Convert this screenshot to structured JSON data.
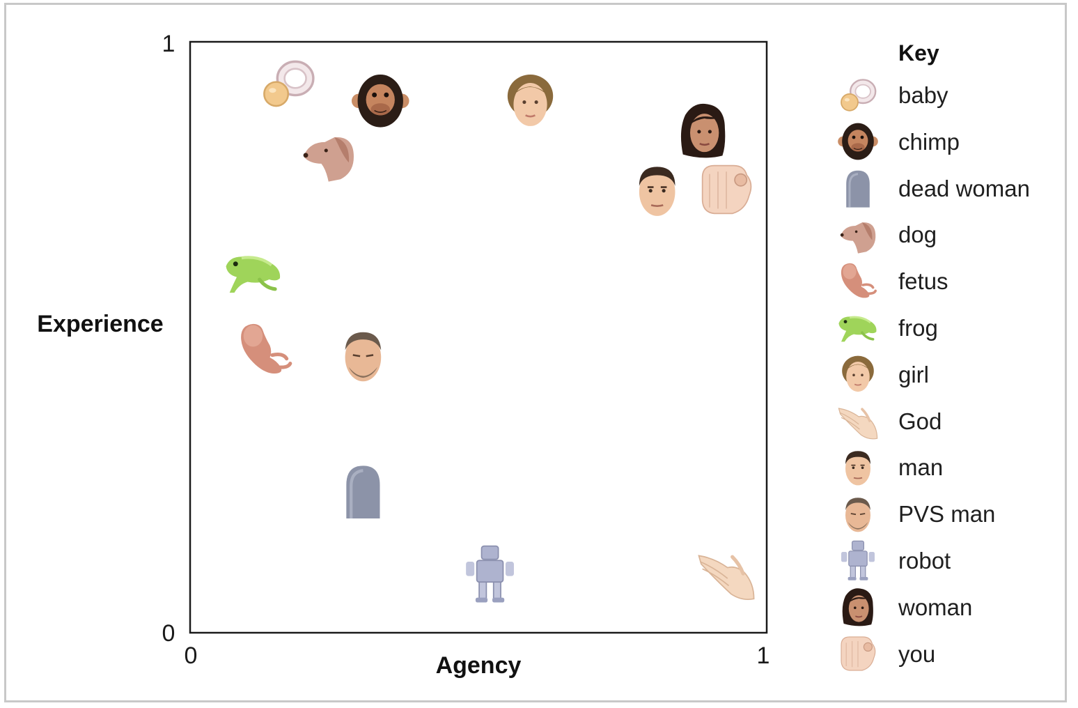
{
  "chart_data": {
    "type": "scatter",
    "title": "",
    "xlabel": "Agency",
    "ylabel": "Experience",
    "xlim": [
      0,
      1
    ],
    "ylim": [
      0,
      1
    ],
    "x_ticks": [
      "0",
      "1"
    ],
    "y_ticks": [
      "0",
      "1"
    ],
    "legend_title": "Key",
    "points": [
      {
        "name": "baby",
        "icon": "pacifier-icon",
        "x": 0.17,
        "y": 0.93
      },
      {
        "name": "chimp",
        "icon": "chimp-icon",
        "x": 0.33,
        "y": 0.9
      },
      {
        "name": "dead woman",
        "icon": "tombstone-icon",
        "x": 0.3,
        "y": 0.24
      },
      {
        "name": "dog",
        "icon": "dog-icon",
        "x": 0.24,
        "y": 0.81
      },
      {
        "name": "fetus",
        "icon": "fetus-icon",
        "x": 0.13,
        "y": 0.48
      },
      {
        "name": "frog",
        "icon": "frog-icon",
        "x": 0.11,
        "y": 0.61
      },
      {
        "name": "girl",
        "icon": "girl-icon",
        "x": 0.59,
        "y": 0.9
      },
      {
        "name": "God",
        "icon": "hands-icon",
        "x": 0.93,
        "y": 0.1
      },
      {
        "name": "man",
        "icon": "man-icon",
        "x": 0.81,
        "y": 0.75
      },
      {
        "name": "PVS man",
        "icon": "pvs-man-icon",
        "x": 0.3,
        "y": 0.47
      },
      {
        "name": "robot",
        "icon": "robot-icon",
        "x": 0.52,
        "y": 0.1
      },
      {
        "name": "woman",
        "icon": "woman-icon",
        "x": 0.89,
        "y": 0.85
      },
      {
        "name": "you",
        "icon": "pointing-hand-icon",
        "x": 0.93,
        "y": 0.75
      }
    ],
    "colors": {
      "skin": "#f2c9a8",
      "skin_shade": "#d9a07c",
      "chimp": "#2b1d16",
      "frog": "#9fd45a",
      "stone": "#8c93a8",
      "robot": "#aeb3cf",
      "fetus": "#d08b78",
      "dog": "#c99a86",
      "hair_brown": "#8a6a3c",
      "hair_dark": "#2a1a14"
    }
  },
  "legend": {
    "title": "Key",
    "items": [
      {
        "label": "baby",
        "icon": "pacifier-icon"
      },
      {
        "label": "chimp",
        "icon": "chimp-icon"
      },
      {
        "label": "dead woman",
        "icon": "tombstone-icon"
      },
      {
        "label": "dog",
        "icon": "dog-icon"
      },
      {
        "label": "fetus",
        "icon": "fetus-icon"
      },
      {
        "label": "frog",
        "icon": "frog-icon"
      },
      {
        "label": "girl",
        "icon": "girl-icon"
      },
      {
        "label": "God",
        "icon": "hands-icon"
      },
      {
        "label": "man",
        "icon": "man-icon"
      },
      {
        "label": "PVS man",
        "icon": "pvs-man-icon"
      },
      {
        "label": "robot",
        "icon": "robot-icon"
      },
      {
        "label": "woman",
        "icon": "woman-icon"
      },
      {
        "label": "you",
        "icon": "pointing-hand-icon"
      }
    ]
  }
}
